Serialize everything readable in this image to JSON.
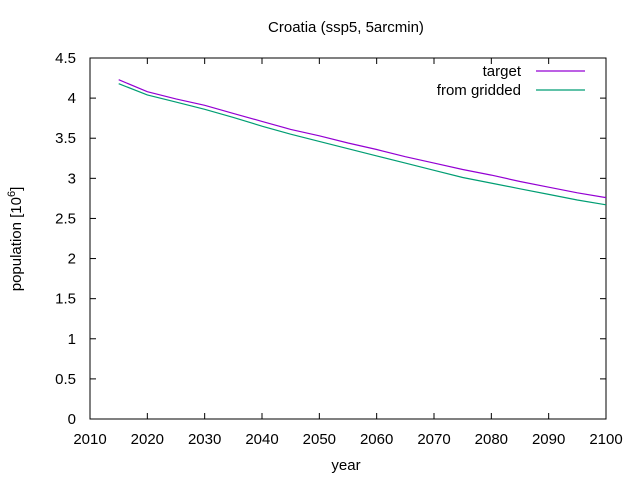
{
  "chart_data": {
    "type": "line",
    "title": "Croatia (ssp5, 5arcmin)",
    "xlabel": "year",
    "ylabel": "population [10",
    "ylabel_exponent": "6",
    "ylabel_suffix": "]",
    "xlim": [
      2010,
      2100
    ],
    "ylim": [
      0,
      4.5
    ],
    "xticks": [
      2010,
      2020,
      2030,
      2040,
      2050,
      2060,
      2070,
      2080,
      2090,
      2100
    ],
    "xtick_labels": [
      "2010",
      "2020",
      "2030",
      "2040",
      "2050",
      "2060",
      "2070",
      "2080",
      "2090",
      "2100"
    ],
    "yticks": [
      0,
      0.5,
      1,
      1.5,
      2,
      2.5,
      3,
      3.5,
      4,
      4.5
    ],
    "ytick_labels": [
      "0",
      "0.5",
      "1",
      "1.5",
      "2",
      "2.5",
      "3",
      "3.5",
      "4",
      "4.5"
    ],
    "grid": false,
    "legend_position": "top-right",
    "series": [
      {
        "name": "target",
        "color": "#9400d3",
        "x": [
          2015,
          2020,
          2025,
          2030,
          2035,
          2040,
          2045,
          2050,
          2055,
          2060,
          2065,
          2070,
          2075,
          2080,
          2085,
          2090,
          2095,
          2100
        ],
        "y": [
          4.23,
          4.08,
          3.99,
          3.91,
          3.81,
          3.71,
          3.61,
          3.53,
          3.44,
          3.36,
          3.27,
          3.19,
          3.11,
          3.04,
          2.96,
          2.89,
          2.82,
          2.76
        ]
      },
      {
        "name": "from gridded",
        "color": "#009e73",
        "x": [
          2015,
          2020,
          2025,
          2030,
          2035,
          2040,
          2045,
          2050,
          2055,
          2060,
          2065,
          2070,
          2075,
          2080,
          2085,
          2090,
          2095,
          2100
        ],
        "y": [
          4.18,
          4.04,
          3.95,
          3.86,
          3.76,
          3.65,
          3.55,
          3.46,
          3.37,
          3.28,
          3.19,
          3.1,
          3.01,
          2.94,
          2.87,
          2.8,
          2.73,
          2.67
        ]
      }
    ]
  }
}
